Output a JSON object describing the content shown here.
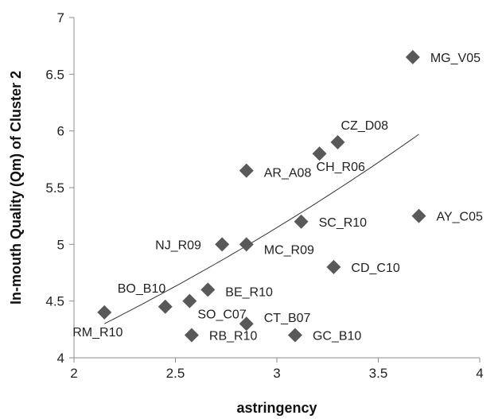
{
  "chart_data": {
    "type": "scatter",
    "xlabel": "astringency",
    "ylabel": "In-mouth Quality (Qm) of Cluster 2",
    "xlim": [
      2,
      4
    ],
    "ylim": [
      4,
      7
    ],
    "x_ticks": [
      "2",
      "2.5",
      "3",
      "3.5",
      "4"
    ],
    "y_ticks": [
      "4",
      "4.5",
      "5",
      "5.5",
      "6",
      "6.5",
      "7"
    ],
    "grid": false,
    "marker": "diamond",
    "marker_color": "#595959",
    "trendline": {
      "type": "exponential",
      "x_range": [
        2.15,
        3.7
      ],
      "y_start": 4.3,
      "y_end": 5.97
    },
    "points": [
      {
        "label": "RM_R10",
        "x": 2.15,
        "y": 4.4
      },
      {
        "label": "BO_B10",
        "x": 2.45,
        "y": 4.45
      },
      {
        "label": "SO_C07",
        "x": 2.57,
        "y": 4.5
      },
      {
        "label": "RB_R10",
        "x": 2.58,
        "y": 4.2
      },
      {
        "label": "BE_R10",
        "x": 2.66,
        "y": 4.6
      },
      {
        "label": "NJ_R09",
        "x": 2.73,
        "y": 5.0
      },
      {
        "label": "MC_R09",
        "x": 2.85,
        "y": 5.0
      },
      {
        "label": "AR_A08",
        "x": 2.85,
        "y": 5.65
      },
      {
        "label": "CT_B07",
        "x": 2.85,
        "y": 4.3
      },
      {
        "label": "GC_B10",
        "x": 3.09,
        "y": 4.2
      },
      {
        "label": "SC_R10",
        "x": 3.12,
        "y": 5.2
      },
      {
        "label": "CH_R06",
        "x": 3.21,
        "y": 5.8
      },
      {
        "label": "CD_C10",
        "x": 3.28,
        "y": 4.8
      },
      {
        "label": "CZ_D08",
        "x": 3.3,
        "y": 5.9
      },
      {
        "label": "MG_V05",
        "x": 3.67,
        "y": 6.65
      },
      {
        "label": "AY_C05",
        "x": 3.7,
        "y": 5.25
      }
    ]
  }
}
